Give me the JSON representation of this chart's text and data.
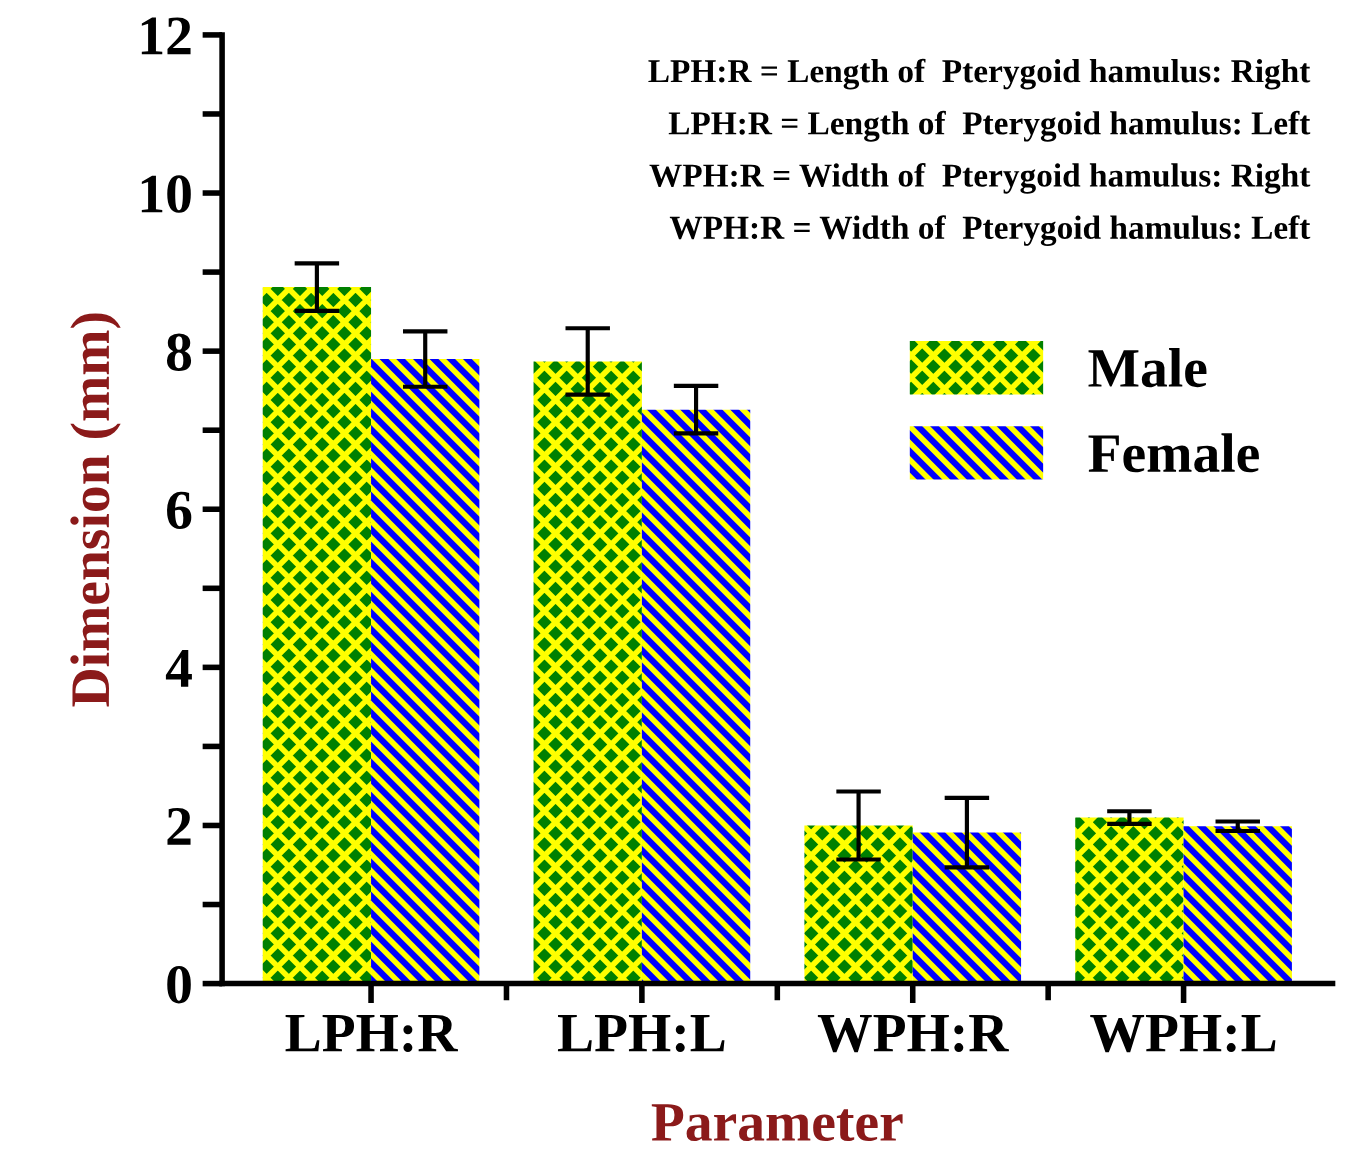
{
  "chart_data": {
    "type": "bar",
    "xlabel": "Parameter",
    "ylabel": "Dimension (mm)",
    "categories": [
      "LPH:R",
      "LPH:L",
      "WPH:R",
      "WPH:L"
    ],
    "series": [
      {
        "name": "Male",
        "color": "#008000",
        "values": [
          8.81,
          7.87,
          2.0,
          2.1
        ],
        "errors": [
          0.3,
          0.42,
          0.43,
          0.08
        ]
      },
      {
        "name": "Female",
        "color": "#0000ff",
        "values": [
          7.9,
          7.26,
          1.91,
          1.99
        ],
        "errors": [
          0.35,
          0.3,
          0.44,
          0.06
        ]
      }
    ],
    "ylim": [
      0,
      12
    ],
    "yticks": [
      0,
      {
        "value": 1,
        "label": null
      },
      2,
      {
        "value": 3,
        "label": null
      },
      4,
      {
        "value": 5,
        "label": null
      },
      6,
      {
        "value": 7,
        "label": null
      },
      8,
      {
        "value": 9,
        "label": null
      },
      10,
      {
        "value": 11,
        "label": null
      },
      12
    ],
    "annotations": [
      "LPH:R = Length of  Pterygoid hamulus: Right",
      "LPH:R = Length of  Pterygoid hamulus: Left",
      "WPH:R = Width of  Pterygoid hamulus: Right",
      "WPH:R = Width of  Pterygoid hamulus: Left"
    ],
    "legend": "top right",
    "grid": false
  }
}
